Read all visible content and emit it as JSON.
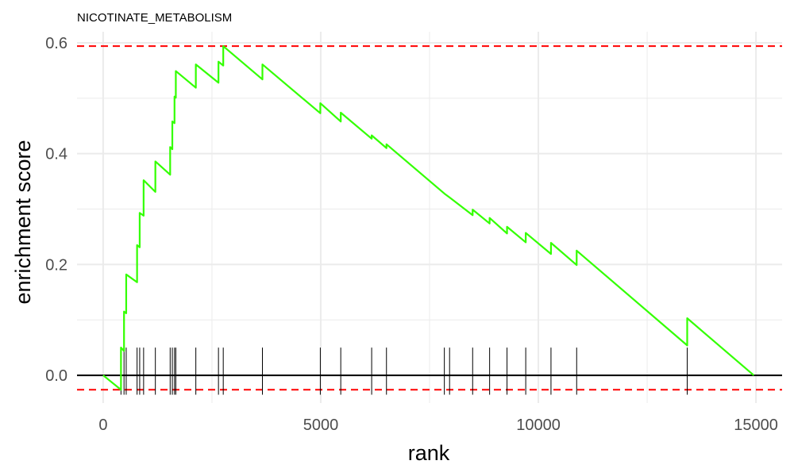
{
  "chart_data": {
    "type": "line",
    "title": "NICOTINATE_METABOLISM",
    "xlabel": "rank",
    "ylabel": "enrichment score",
    "xlim": [
      -600,
      15600
    ],
    "ylim": [
      -0.05,
      0.62
    ],
    "x_ticks": [
      0,
      5000,
      10000,
      15000
    ],
    "x_tick_labels": [
      "0",
      "5000",
      "10000",
      "15000"
    ],
    "y_ticks": [
      0.0,
      0.2,
      0.4,
      0.6
    ],
    "y_tick_labels": [
      "0.0",
      "0.2",
      "0.4",
      "0.6"
    ],
    "grid": true,
    "colors": {
      "curve": "#33ff00",
      "threshold": "#ff0000",
      "baseline": "#000000",
      "hits": "#000000",
      "grid": "#ebebeb"
    },
    "thresholds": [
      0.594,
      -0.026
    ],
    "hit_ranks": [
      410,
      480,
      530,
      780,
      840,
      930,
      1200,
      1540,
      1590,
      1640,
      1670,
      2130,
      2650,
      2760,
      3660,
      4990,
      5460,
      6170,
      6510,
      7840,
      7960,
      8490,
      8880,
      9280,
      9710,
      10290,
      10880,
      13420
    ],
    "series": [
      {
        "values": [
          [
            0,
            0.0
          ],
          [
            410,
            -0.026
          ],
          [
            410,
            0.05
          ],
          [
            480,
            0.044
          ],
          [
            480,
            0.115
          ],
          [
            530,
            0.112
          ],
          [
            530,
            0.182
          ],
          [
            780,
            0.168
          ],
          [
            780,
            0.235
          ],
          [
            840,
            0.231
          ],
          [
            840,
            0.293
          ],
          [
            930,
            0.288
          ],
          [
            930,
            0.352
          ],
          [
            1200,
            0.331
          ],
          [
            1200,
            0.386
          ],
          [
            1540,
            0.362
          ],
          [
            1540,
            0.412
          ],
          [
            1590,
            0.408
          ],
          [
            1590,
            0.458
          ],
          [
            1640,
            0.455
          ],
          [
            1640,
            0.503
          ],
          [
            1670,
            0.501
          ],
          [
            1670,
            0.549
          ],
          [
            2130,
            0.519
          ],
          [
            2130,
            0.561
          ],
          [
            2650,
            0.528
          ],
          [
            2650,
            0.566
          ],
          [
            2760,
            0.559
          ],
          [
            2760,
            0.594
          ],
          [
            3660,
            0.534
          ],
          [
            3660,
            0.561
          ],
          [
            4990,
            0.473
          ],
          [
            4990,
            0.491
          ],
          [
            5460,
            0.458
          ],
          [
            5460,
            0.474
          ],
          [
            6170,
            0.427
          ],
          [
            6170,
            0.433
          ],
          [
            6510,
            0.41
          ],
          [
            6510,
            0.417
          ],
          [
            7840,
            0.328
          ],
          [
            7960,
            0.321
          ],
          [
            8490,
            0.289
          ],
          [
            8490,
            0.299
          ],
          [
            8880,
            0.274
          ],
          [
            8880,
            0.284
          ],
          [
            9280,
            0.256
          ],
          [
            9280,
            0.268
          ],
          [
            9710,
            0.24
          ],
          [
            9710,
            0.257
          ],
          [
            10290,
            0.219
          ],
          [
            10290,
            0.239
          ],
          [
            10880,
            0.199
          ],
          [
            10880,
            0.225
          ],
          [
            13420,
            0.054
          ],
          [
            13420,
            0.103
          ],
          [
            14950,
            0.0
          ]
        ]
      }
    ]
  }
}
